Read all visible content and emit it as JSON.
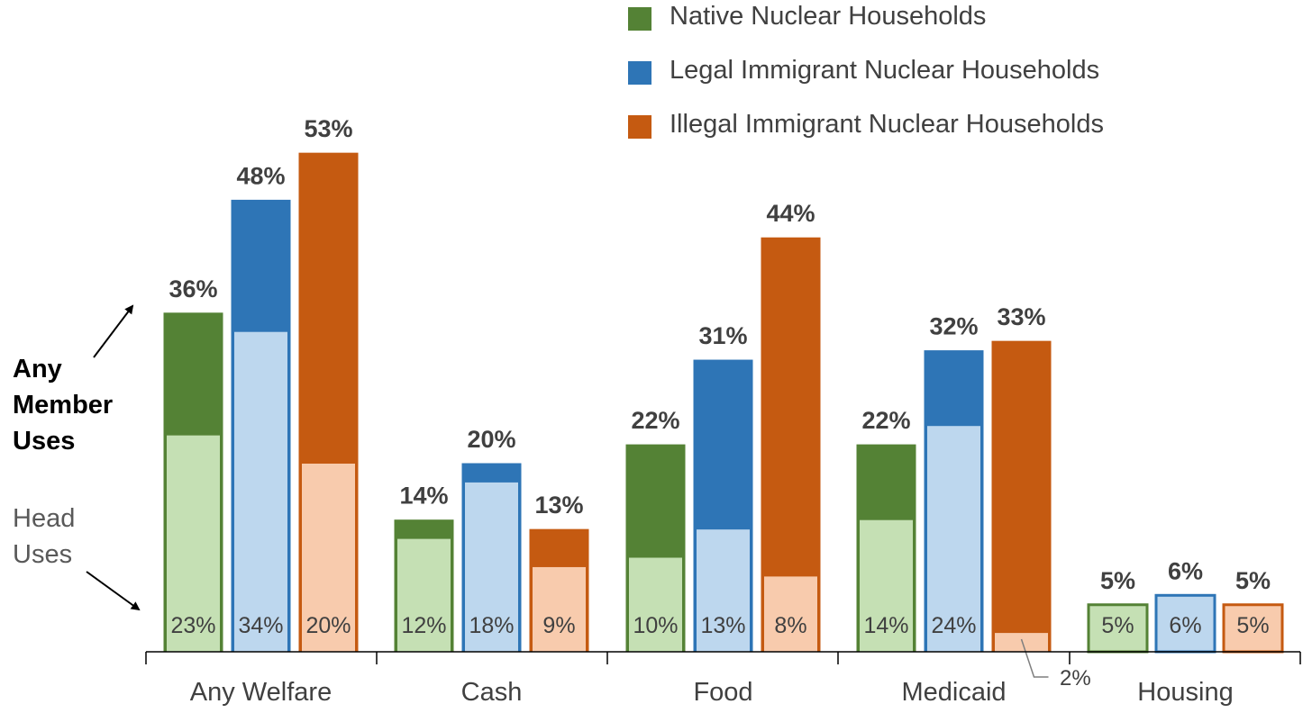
{
  "chart_data": {
    "type": "bar",
    "subtype": "grouped-overlay",
    "categories": [
      "Any Welfare",
      "Cash",
      "Food",
      "Medicaid",
      "Housing"
    ],
    "series": [
      {
        "name": "Native Nuclear Households",
        "any_member_uses": [
          36,
          14,
          22,
          22,
          5
        ],
        "head_uses": [
          23,
          12,
          10,
          14,
          5
        ],
        "color_dark": "#548235",
        "color_light": "#c5e0b4"
      },
      {
        "name": "Legal Immigrant Nuclear Households",
        "any_member_uses": [
          48,
          20,
          31,
          32,
          6
        ],
        "head_uses": [
          34,
          18,
          13,
          24,
          6
        ],
        "color_dark": "#2e75b6",
        "color_light": "#bdd7ee"
      },
      {
        "name": "Illegal Immigrant Nuclear Households",
        "any_member_uses": [
          53,
          13,
          44,
          33,
          5
        ],
        "head_uses": [
          20,
          9,
          8,
          2,
          5
        ],
        "color_dark": "#c55a11",
        "color_light": "#f8cbad"
      }
    ],
    "total_labels": [
      [
        "36%",
        "48%",
        "53%"
      ],
      [
        "14%",
        "20%",
        "13%"
      ],
      [
        "22%",
        "31%",
        "44%"
      ],
      [
        "22%",
        "32%",
        "33%"
      ],
      [
        "5%",
        "6%",
        "5%"
      ]
    ],
    "head_labels": [
      [
        "23%",
        "34%",
        "20%"
      ],
      [
        "12%",
        "18%",
        "9%"
      ],
      [
        "10%",
        "13%",
        "8%"
      ],
      [
        "14%",
        "24%",
        ""
      ],
      [
        "5%",
        "6%",
        "5%"
      ]
    ],
    "callout_label": "2%",
    "legend_position": "top-right",
    "grid": false
  },
  "side_labels": {
    "any_member": [
      "Any",
      "Member",
      "Uses"
    ],
    "head": [
      "Head",
      "Uses"
    ]
  }
}
